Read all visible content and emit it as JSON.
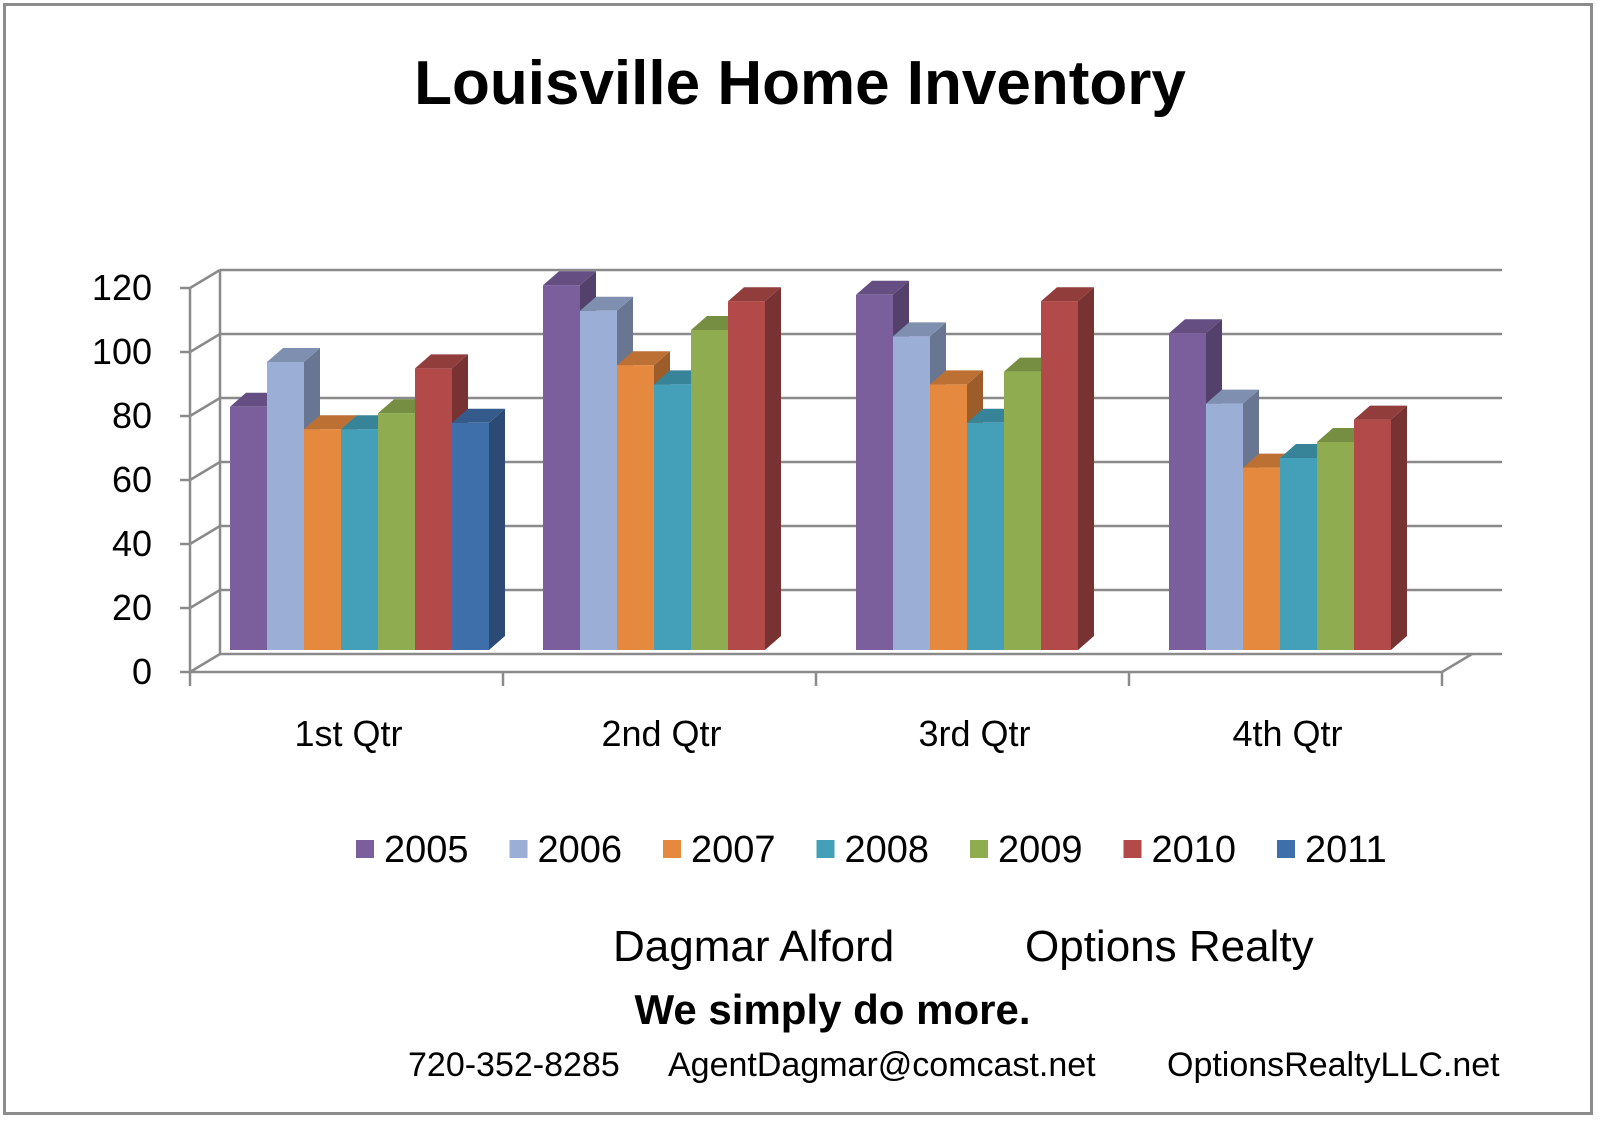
{
  "chart_data": {
    "type": "bar",
    "title": "Louisville Home Inventory",
    "categories": [
      "1st Qtr",
      "2nd Qtr",
      "3rd Qtr",
      "4th Qtr"
    ],
    "series": [
      {
        "name": "2005",
        "color": "#7b5f9d",
        "values": [
          76,
          114,
          111,
          99
        ]
      },
      {
        "name": "2006",
        "color": "#9aaed6",
        "values": [
          90,
          106,
          98,
          77
        ]
      },
      {
        "name": "2007",
        "color": "#e5893f",
        "values": [
          69,
          89,
          83,
          57
        ]
      },
      {
        "name": "2008",
        "color": "#43a0b8",
        "values": [
          69,
          83,
          71,
          60
        ]
      },
      {
        "name": "2009",
        "color": "#8fad50",
        "values": [
          74,
          100,
          87,
          65
        ]
      },
      {
        "name": "2010",
        "color": "#b14a48",
        "values": [
          88,
          109,
          109,
          72
        ]
      },
      {
        "name": "2011",
        "color": "#3f6fab",
        "values": [
          71,
          null,
          null,
          null
        ]
      }
    ],
    "y_ticks": [
      0,
      20,
      40,
      60,
      80,
      100,
      120
    ],
    "ylim": [
      0,
      120
    ],
    "grid": true,
    "legend": "bottom",
    "style": "3d-clustered-column"
  },
  "footer": {
    "agent": "Dagmar Alford",
    "company": "Options Realty",
    "tagline": "We simply do more.",
    "phone": "720-352-8285",
    "email": "AgentDagmar@comcast.net",
    "website": "OptionsRealtyLLC.net"
  }
}
